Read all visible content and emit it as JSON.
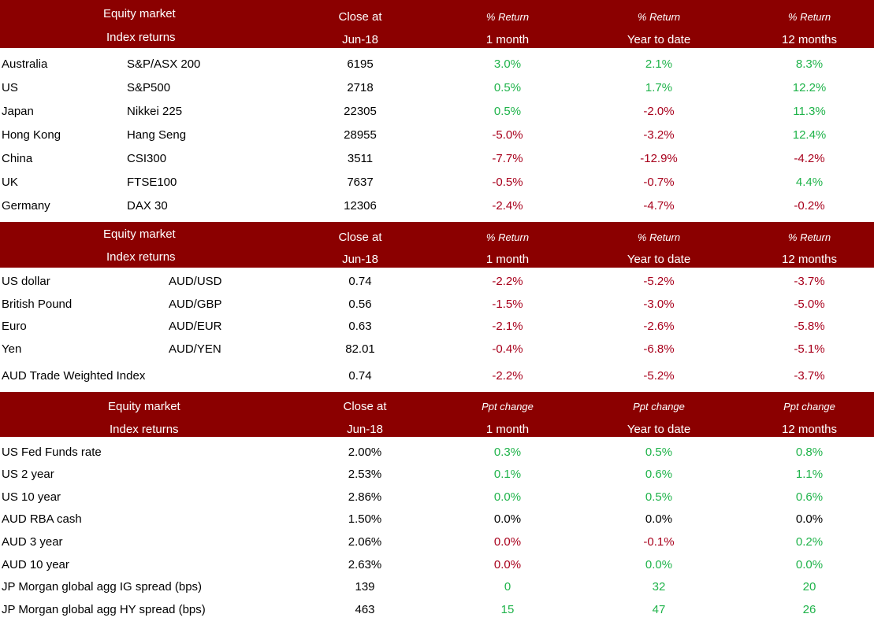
{
  "colors": {
    "header_bg": "#8b0000",
    "positive": "#1fb34a",
    "negative": "#a8001c",
    "neutral": "#000000"
  },
  "sections": [
    {
      "header": {
        "title1": "Equity market",
        "title2": "Index returns",
        "col1_top": "Close at",
        "col1_bottom": "Jun-18",
        "col2_top": "% Return",
        "col2_bottom": "1 month",
        "col3_top": "% Return",
        "col3_bottom": "Year to date",
        "col4_top": "% Return",
        "col4_bottom": "12 months"
      },
      "rows": [
        {
          "name": "Australia",
          "index": "S&P/ASX 200",
          "close": "6195",
          "m1": "3.0%",
          "ytd": "2.1%",
          "m12": "8.3%"
        },
        {
          "name": "US",
          "index": "S&P500",
          "close": "2718",
          "m1": "0.5%",
          "ytd": "1.7%",
          "m12": "12.2%"
        },
        {
          "name": "Japan",
          "index": "Nikkei 225",
          "close": "22305",
          "m1": "0.5%",
          "ytd": "-2.0%",
          "m12": "11.3%"
        },
        {
          "name": "Hong Kong",
          "index": "Hang Seng",
          "close": "28955",
          "m1": "-5.0%",
          "ytd": "-3.2%",
          "m12": "12.4%"
        },
        {
          "name": "China",
          "index": "CSI300",
          "close": "3511",
          "m1": "-7.7%",
          "ytd": "-12.9%",
          "m12": "-4.2%"
        },
        {
          "name": "UK",
          "index": "FTSE100",
          "close": "7637",
          "m1": "-0.5%",
          "ytd": "-0.7%",
          "m12": "4.4%"
        },
        {
          "name": "Germany",
          "index": "DAX 30",
          "close": "12306",
          "m1": "-2.4%",
          "ytd": "-4.7%",
          "m12": "-0.2%"
        }
      ]
    },
    {
      "header": {
        "title1": "Equity market",
        "title2": "Index returns",
        "col1_top": "Close at",
        "col1_bottom": "Jun-18",
        "col2_top": "% Return",
        "col2_bottom": "1 month",
        "col3_top": "% Return",
        "col3_bottom": "Year to date",
        "col4_top": "% Return",
        "col4_bottom": "12 months"
      },
      "rows": [
        {
          "name": "US dollar",
          "index": "AUD/USD",
          "close": "0.74",
          "m1": "-2.2%",
          "ytd": "-5.2%",
          "m12": "-3.7%"
        },
        {
          "name": "British Pound",
          "index": "AUD/GBP",
          "close": "0.56",
          "m1": "-1.5%",
          "ytd": "-3.0%",
          "m12": "-5.0%"
        },
        {
          "name": "Euro",
          "index": "AUD/EUR",
          "close": "0.63",
          "m1": "-2.1%",
          "ytd": "-2.6%",
          "m12": "-5.8%"
        },
        {
          "name": "Yen",
          "index": "AUD/YEN",
          "close": "82.01",
          "m1": "-0.4%",
          "ytd": "-6.8%",
          "m12": "-5.1%"
        },
        {
          "name": "AUD Trade Weighted Index",
          "index": "",
          "close": "0.74",
          "m1": "-2.2%",
          "ytd": "-5.2%",
          "m12": "-3.7%"
        }
      ]
    },
    {
      "header": {
        "title1": "Equity market",
        "title2": "Index returns",
        "col1_top": "Close at",
        "col1_bottom": "Jun-18",
        "col2_top": "Ppt change",
        "col2_bottom": "1 month",
        "col3_top": "Ppt change",
        "col3_bottom": "Year to date",
        "col4_top": "Ppt change",
        "col4_bottom": "12 months"
      },
      "rows": [
        {
          "name": "US Fed Funds rate",
          "index": "",
          "close": "2.00%",
          "m1": "0.3%",
          "ytd": "0.5%",
          "m12": "0.8%"
        },
        {
          "name": "US 2 year",
          "index": "",
          "close": "2.53%",
          "m1": "0.1%",
          "ytd": "0.6%",
          "m12": "1.1%"
        },
        {
          "name": "US 10 year",
          "index": "",
          "close": "2.86%",
          "m1": "0.0%",
          "ytd": "0.5%",
          "m12": "0.6%"
        },
        {
          "name": "AUD RBA cash",
          "index": "",
          "close": "1.50%",
          "m1": "0.0%",
          "ytd": "0.0%",
          "m12": "0.0%"
        },
        {
          "name": "AUD 3 year",
          "index": "",
          "close": "2.06%",
          "m1": "0.0%",
          "ytd": "-0.1%",
          "m12": "0.2%"
        },
        {
          "name": "AUD 10 year",
          "index": "",
          "close": "2.63%",
          "m1": "0.0%",
          "ytd": "0.0%",
          "m12": "0.0%"
        },
        {
          "name": "JP Morgan global agg IG  spread (bps)",
          "index": "",
          "close": "139",
          "m1": "0",
          "ytd": "32",
          "m12": "20"
        },
        {
          "name": "JP Morgan global agg HY  spread (bps)",
          "index": "",
          "close": "463",
          "m1": "15",
          "ytd": "47",
          "m12": "26"
        }
      ]
    }
  ]
}
